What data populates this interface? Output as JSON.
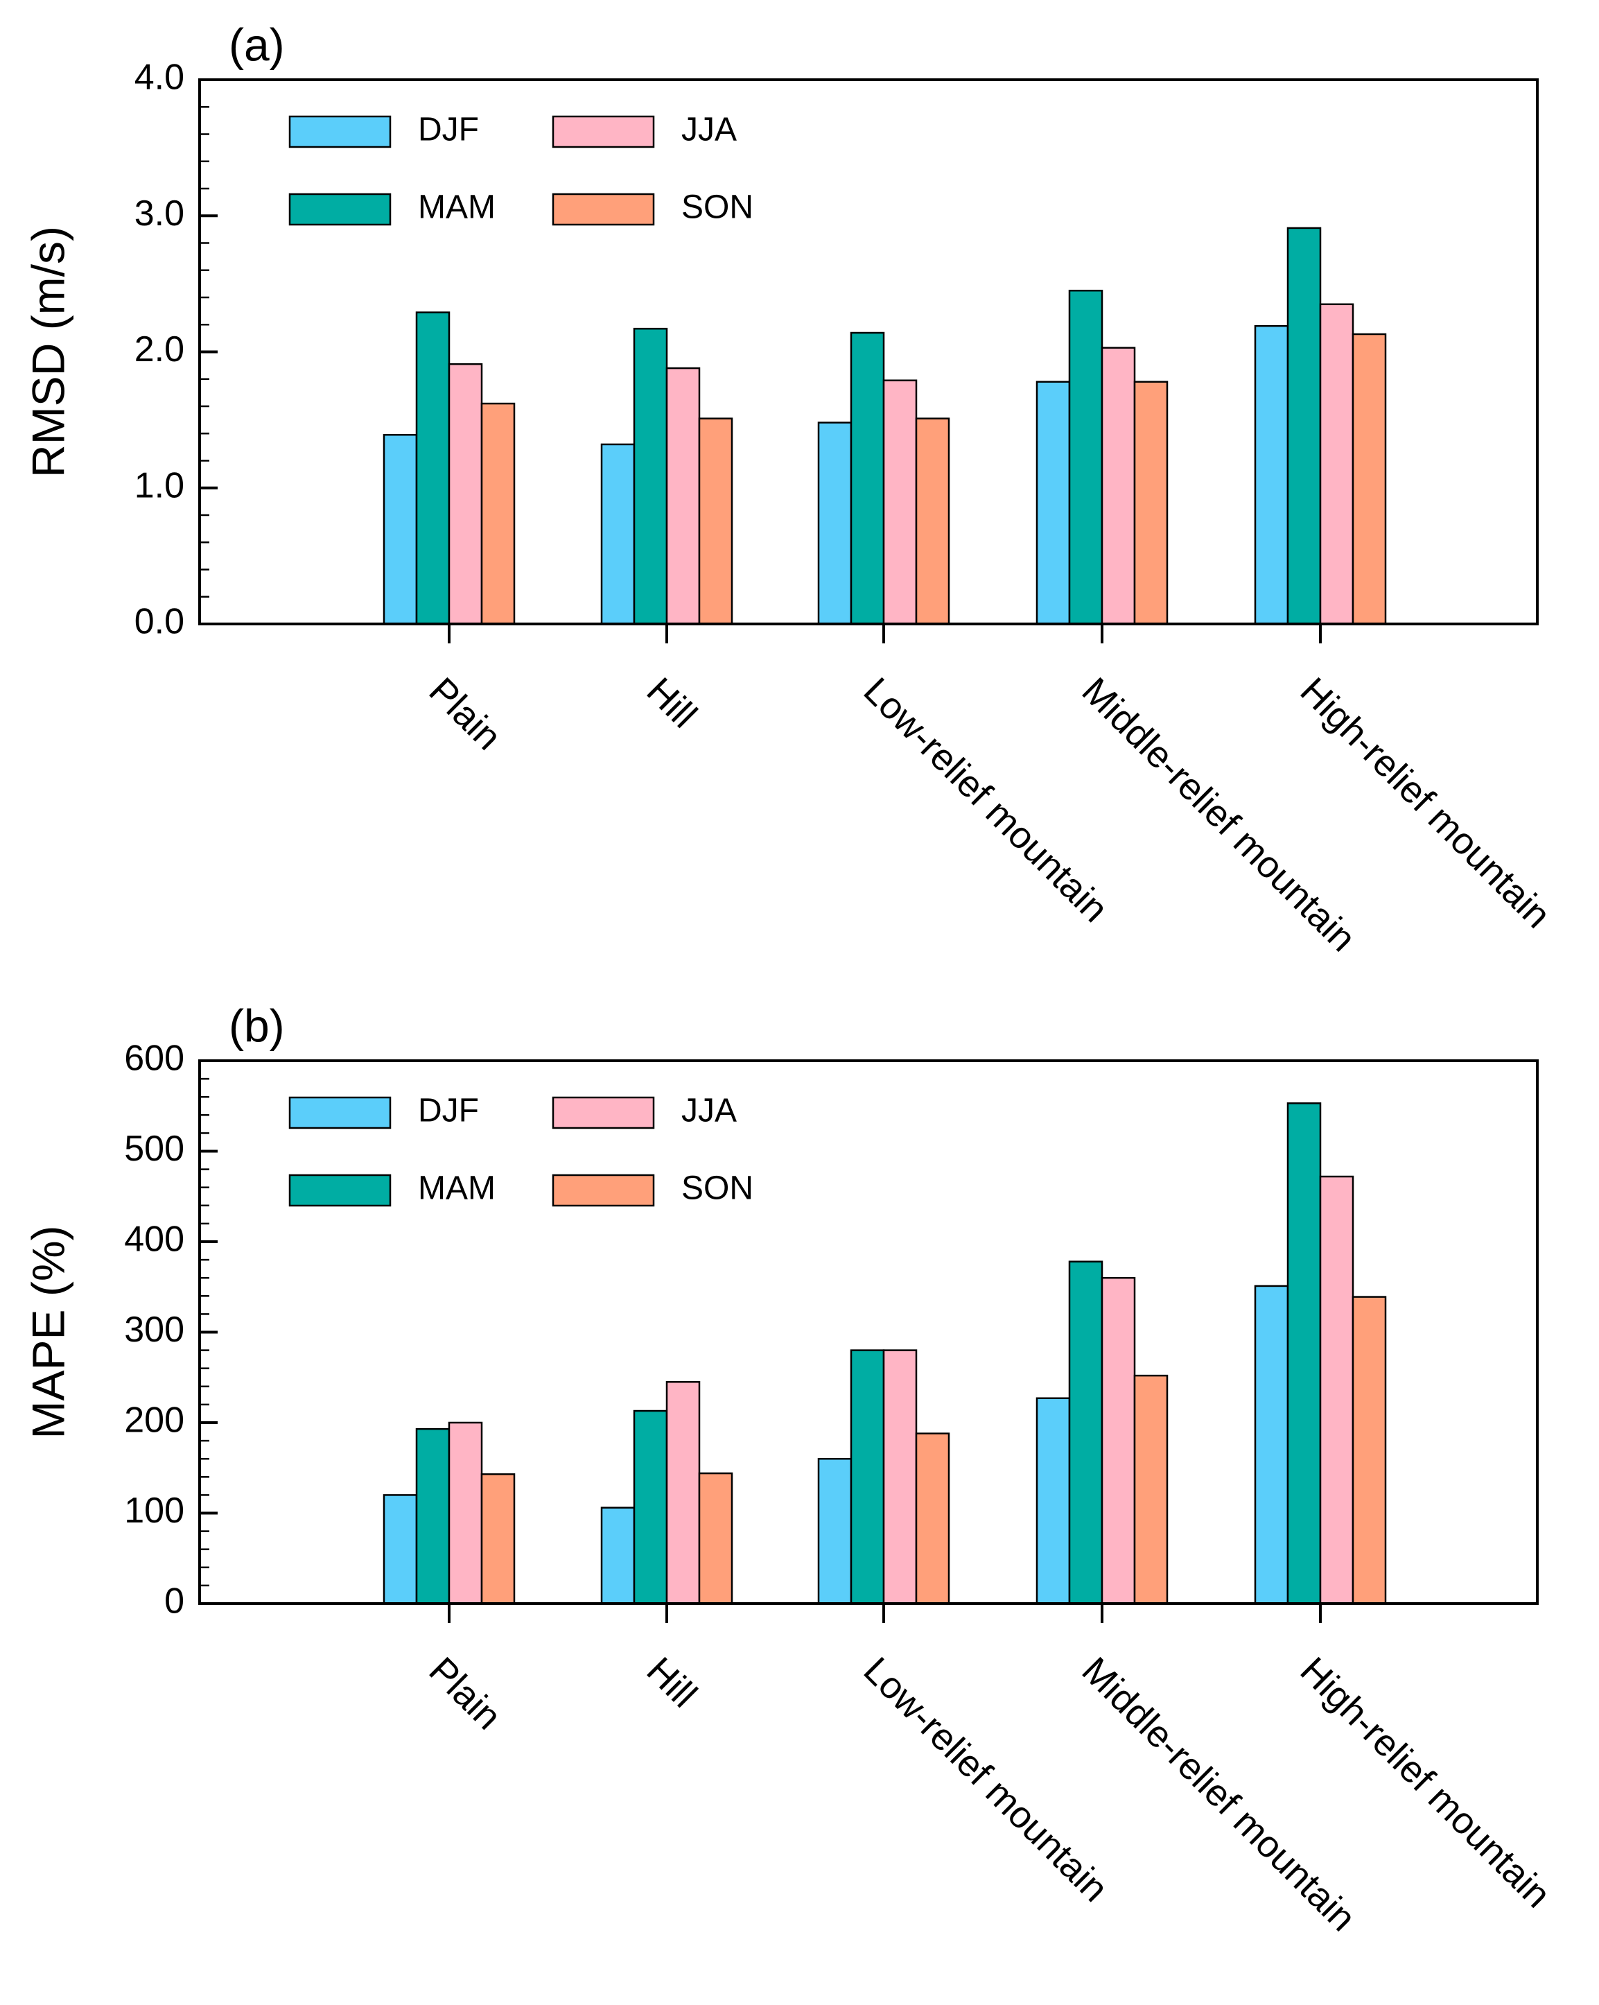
{
  "chart_data": [
    {
      "type": "bar",
      "panel_label": "(a)",
      "title": "",
      "xlabel": "",
      "ylabel": "RMSD (m/s)",
      "ylim": [
        0,
        4.0
      ],
      "yticks": [
        "0.0",
        "1.0",
        "2.0",
        "3.0",
        "4.0"
      ],
      "ytick_values": [
        0,
        1,
        2,
        3,
        4
      ],
      "yminor_step": 0.2,
      "categories": [
        "Plain",
        "Hill",
        "Low-relief mountain",
        "Middle-relief mountain",
        "High-relief mountain"
      ],
      "series": [
        {
          "name": "DJF",
          "color": "#5BCEFA",
          "values": [
            1.39,
            1.32,
            1.48,
            1.78,
            2.19
          ]
        },
        {
          "name": "MAM",
          "color": "#00ADA3",
          "values": [
            2.29,
            2.17,
            2.14,
            2.45,
            2.91
          ]
        },
        {
          "name": "JJA",
          "color": "#FFB5C5",
          "values": [
            1.91,
            1.88,
            1.79,
            2.03,
            2.35
          ]
        },
        {
          "name": "SON",
          "color": "#FFA07A",
          "values": [
            1.62,
            1.51,
            1.51,
            1.78,
            2.13
          ]
        }
      ],
      "legend": {
        "placement": "top-left",
        "order": [
          "DJF",
          "JJA",
          "MAM",
          "SON"
        ]
      }
    },
    {
      "type": "bar",
      "panel_label": "(b)",
      "title": "",
      "xlabel": "",
      "ylabel": "MAPE (%)",
      "ylim": [
        0,
        600
      ],
      "yticks": [
        "0",
        "100",
        "200",
        "300",
        "400",
        "500",
        "600"
      ],
      "ytick_values": [
        0,
        100,
        200,
        300,
        400,
        500,
        600
      ],
      "yminor_step": 20,
      "categories": [
        "Plain",
        "Hill",
        "Low-relief mountain",
        "Middle-relief mountain",
        "High-relief mountain"
      ],
      "series": [
        {
          "name": "DJF",
          "color": "#5BCEFA",
          "values": [
            120,
            106,
            160,
            227,
            351
          ]
        },
        {
          "name": "MAM",
          "color": "#00ADA3",
          "values": [
            193,
            213,
            280,
            378,
            553
          ]
        },
        {
          "name": "JJA",
          "color": "#FFB5C5",
          "values": [
            200,
            245,
            280,
            360,
            472
          ]
        },
        {
          "name": "SON",
          "color": "#FFA07A",
          "values": [
            143,
            144,
            188,
            252,
            339
          ]
        }
      ],
      "legend": {
        "placement": "top-left",
        "order": [
          "DJF",
          "JJA",
          "MAM",
          "SON"
        ]
      }
    }
  ]
}
